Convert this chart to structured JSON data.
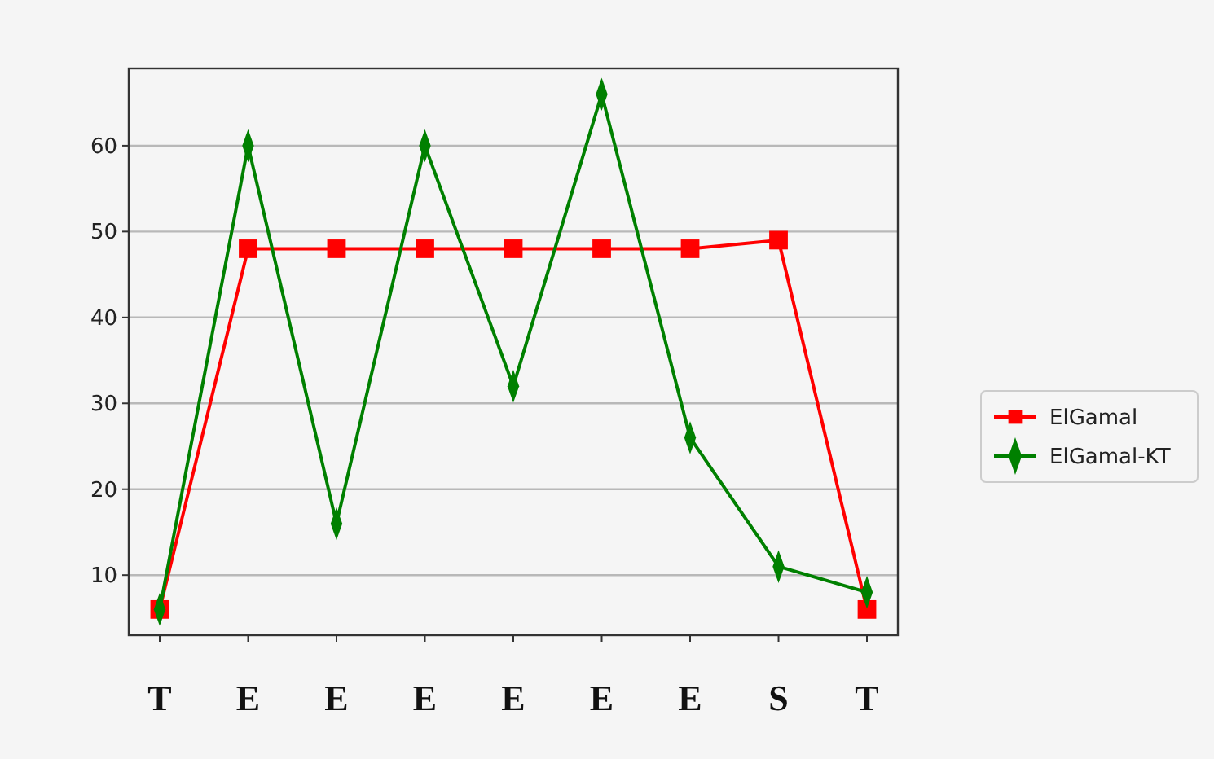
{
  "chart_data": {
    "type": "line",
    "categories": [
      "T",
      "E",
      "E",
      "E",
      "E",
      "E",
      "E",
      "S",
      "T"
    ],
    "series": [
      {
        "name": "ElGamal",
        "color": "#ff0000",
        "marker": "square",
        "values": [
          6,
          48,
          48,
          48,
          48,
          48,
          48,
          49,
          6
        ]
      },
      {
        "name": "ElGamal-KT",
        "color": "#008000",
        "marker": "diamond",
        "values": [
          6,
          60,
          16,
          60,
          32,
          66,
          26,
          11,
          8
        ]
      }
    ],
    "ylim": [
      3,
      69
    ],
    "yticks": [
      10,
      20,
      30,
      40,
      50,
      60
    ],
    "grid": "y",
    "legend": "right",
    "line_style": "solid"
  }
}
